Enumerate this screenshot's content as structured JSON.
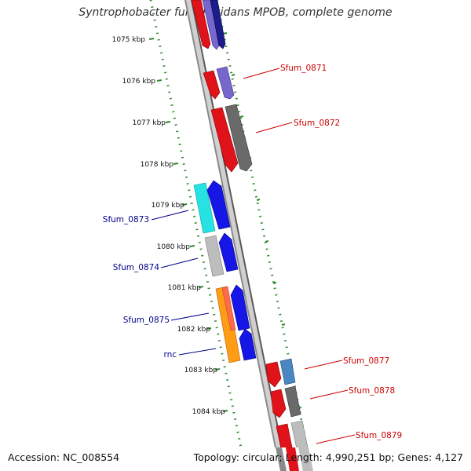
{
  "title": "Syntrophobacter fumaroxidans MPOB, complete genome",
  "footer": {
    "accession": "Accession: NC_008554",
    "topology": "Topology: circular; Length: 4,990,251 bp; Genes: 4,127"
  },
  "colors": {
    "background": "#ffffff",
    "backbone": "#7a7a7a",
    "ruler": "#2f8a2f",
    "label_forward": "#cc0000",
    "label_reverse": "#00008b",
    "red": "#e0121a",
    "navy": "#1c1c8c",
    "lavender": "#7766cc",
    "gray": "#6a6a6a",
    "lightgray": "#bdbdbd",
    "steelblue": "#4a86c0",
    "cyan": "#27e2e2",
    "blue": "#1616e6",
    "orange": "#ff9c16",
    "salmon": "#ff6a4a"
  },
  "kbp_labels": [
    "1075 kbp",
    "1076 kbp",
    "1077 kbp",
    "1078 kbp",
    "1079 kbp",
    "1080 kbp",
    "1081 kbp",
    "1082 kbp",
    "1083 kbp",
    "1084 kbp"
  ],
  "gene_labels": [
    {
      "name": "Sfum_0871",
      "strand": "forward"
    },
    {
      "name": "Sfum_0872",
      "strand": "forward"
    },
    {
      "name": "Sfum_0873",
      "strand": "reverse"
    },
    {
      "name": "Sfum_0874",
      "strand": "reverse"
    },
    {
      "name": "Sfum_0875",
      "strand": "reverse"
    },
    {
      "name": "rnc",
      "strand": "reverse"
    },
    {
      "name": "Sfum_0877",
      "strand": "forward"
    },
    {
      "name": "Sfum_0878",
      "strand": "forward"
    },
    {
      "name": "Sfum_0879",
      "strand": "forward"
    }
  ]
}
